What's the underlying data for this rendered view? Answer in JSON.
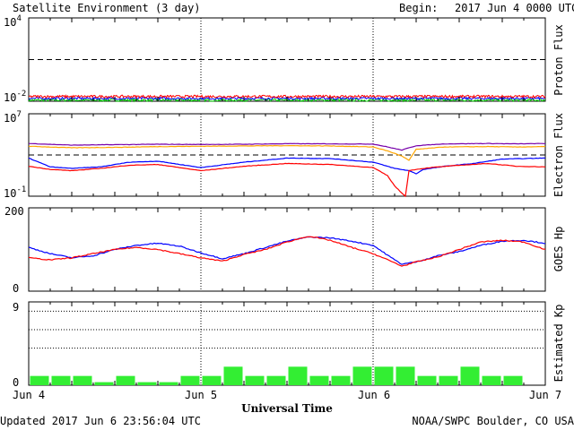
{
  "header": {
    "title": "Satellite Environment (3 day)",
    "begin_label": "Begin:",
    "begin_value": "2017 Jun 4 0000 UTC"
  },
  "footer": {
    "updated": "Updated 2017 Jun  6 23:56:04 UTC",
    "source": "NOAA/SWPC Boulder, CO USA"
  },
  "colors": {
    "red": "#ff0000",
    "blue": "#0000ff",
    "green": "#00cc00",
    "purple": "#7700aa",
    "orange": "#ffa500",
    "kp_bar": "#33ee33"
  },
  "chart_data": [
    {
      "type": "line",
      "panel": "proton",
      "ylabel": "Proton Flux",
      "yscale": "log",
      "ylim": [
        0.01,
        10000
      ],
      "yticks": [
        {
          "base": "10",
          "exp": "4",
          "value": 10000
        },
        {
          "base": "10",
          "exp": "-2",
          "value": 0.01
        }
      ],
      "threshold": 10,
      "xlim": [
        0,
        72
      ],
      "series": [
        {
          "color": "#ff0000",
          "level": 0.022,
          "noise": 0.09
        },
        {
          "color": "#0000ff",
          "level": 0.016,
          "noise": 0.08
        },
        {
          "color": "#00cc00",
          "level": 0.012,
          "noise": 0.09
        }
      ]
    },
    {
      "type": "line",
      "panel": "electron",
      "ylabel": "Electron Flux",
      "yscale": "log",
      "ylim": [
        0.1,
        10000000
      ],
      "yticks": [
        {
          "base": "10",
          "exp": "7",
          "value": 10000000
        },
        {
          "base": "10",
          "exp": "-1",
          "value": 0.1
        }
      ],
      "threshold": 1000,
      "xlim": [
        0,
        72
      ],
      "series": [
        {
          "color": "#7700aa",
          "x": [
            0,
            6,
            12,
            18,
            24,
            30,
            36,
            42,
            48,
            50,
            52,
            54,
            58,
            64,
            68,
            72
          ],
          "y": [
            13000,
            9000,
            10000,
            11000,
            10500,
            11000,
            12500,
            12000,
            11500,
            6000,
            3000,
            8000,
            12000,
            13000,
            12000,
            13000
          ]
        },
        {
          "color": "#ffa500",
          "x": [
            0,
            6,
            12,
            18,
            24,
            30,
            36,
            42,
            48,
            50,
            52,
            53,
            54,
            58,
            64,
            68,
            72
          ],
          "y": [
            7000,
            5000,
            5500,
            6500,
            7000,
            7500,
            8000,
            7500,
            6000,
            2500,
            800,
            300,
            3500,
            6000,
            6500,
            6000,
            6500
          ]
        },
        {
          "color": "#0000ff",
          "x": [
            0,
            3,
            6,
            10,
            14,
            18,
            24,
            30,
            36,
            42,
            48,
            51,
            53,
            54,
            55,
            58,
            62,
            66,
            72
          ],
          "y": [
            500,
            70,
            50,
            70,
            200,
            250,
            60,
            200,
            500,
            450,
            200,
            50,
            30,
            15,
            40,
            80,
            150,
            400,
            500
          ]
        },
        {
          "color": "#ff0000",
          "x": [
            0,
            3,
            6,
            10,
            14,
            18,
            24,
            30,
            36,
            42,
            48,
            50,
            51,
            52,
            52.5,
            53,
            54,
            56,
            60,
            64,
            68,
            72
          ],
          "y": [
            80,
            40,
            30,
            50,
            100,
            120,
            30,
            80,
            150,
            120,
            60,
            10,
            1,
            0.2,
            0.1,
            30,
            40,
            60,
            100,
            150,
            80,
            70
          ]
        }
      ]
    },
    {
      "type": "line",
      "panel": "hp",
      "ylabel": "GOES Hp",
      "ylim": [
        0,
        200
      ],
      "yticks": [
        {
          "label": "200",
          "value": 200
        },
        {
          "label": "0",
          "value": 0
        }
      ],
      "xlim": [
        0,
        72
      ],
      "series": [
        {
          "color": "#0000ff",
          "x": [
            0,
            3,
            6,
            9,
            12,
            15,
            18,
            21,
            24,
            27,
            30,
            33,
            36,
            39,
            42,
            45,
            48,
            51,
            52,
            54,
            57,
            60,
            63,
            66,
            69,
            72
          ],
          "y": [
            105,
            90,
            80,
            85,
            100,
            110,
            115,
            108,
            92,
            78,
            90,
            105,
            120,
            130,
            128,
            120,
            110,
            75,
            65,
            70,
            85,
            95,
            110,
            120,
            122,
            115
          ]
        },
        {
          "color": "#ff0000",
          "x": [
            0,
            3,
            6,
            9,
            12,
            15,
            18,
            21,
            24,
            27,
            30,
            33,
            36,
            39,
            42,
            45,
            48,
            51,
            52,
            54,
            57,
            60,
            63,
            66,
            69,
            72
          ],
          "y": [
            80,
            75,
            80,
            90,
            100,
            105,
            100,
            90,
            80,
            72,
            88,
            100,
            118,
            132,
            122,
            105,
            90,
            68,
            60,
            70,
            82,
            100,
            118,
            122,
            118,
            100
          ]
        }
      ]
    },
    {
      "type": "bar",
      "panel": "kp",
      "ylabel": "Estimated Kp",
      "ylim": [
        0,
        9
      ],
      "yticks": [
        {
          "label": "9",
          "value": 9
        },
        {
          "label": "0",
          "value": 0
        }
      ],
      "gridlines": [
        4,
        6,
        8
      ],
      "xlim": [
        0,
        72
      ],
      "bar_hours": 3,
      "values": [
        1,
        1,
        1,
        0.33,
        1,
        0.33,
        0.33,
        1,
        1,
        2,
        1,
        1,
        2,
        1,
        1,
        2,
        2,
        2,
        1,
        1,
        2,
        1,
        1,
        0
      ]
    }
  ],
  "xaxis": {
    "label": "Universal Time",
    "ticks": [
      {
        "label": "Jun 4",
        "hour": 0
      },
      {
        "label": "Jun 5",
        "hour": 24
      },
      {
        "label": "Jun 6",
        "hour": 48
      },
      {
        "label": "Jun 7",
        "hour": 72
      }
    ]
  }
}
